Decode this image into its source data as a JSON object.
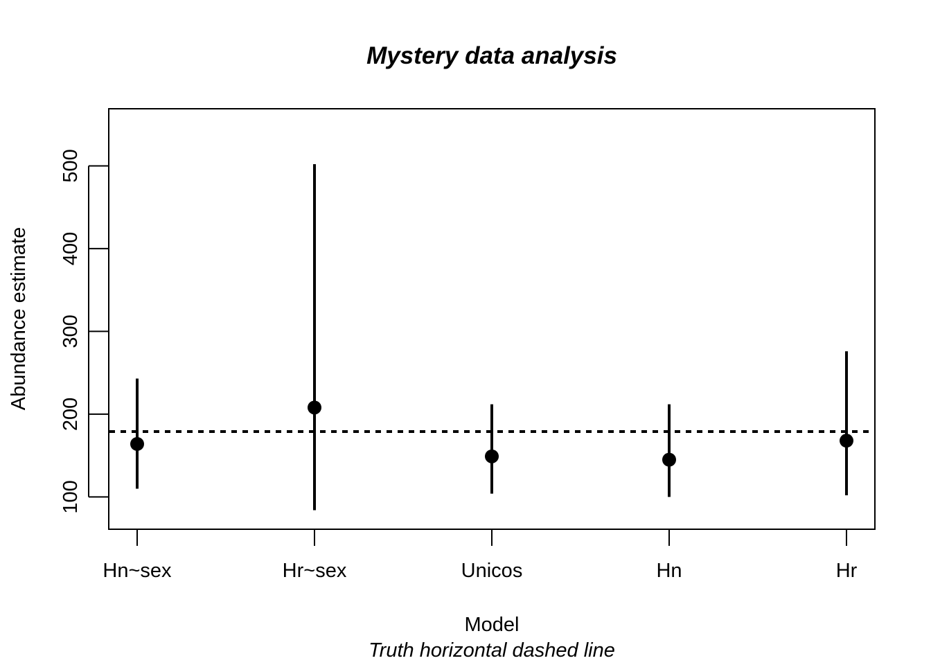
{
  "chart_data": {
    "type": "scatter",
    "title": "Mystery data analysis",
    "xlabel": "Model",
    "ylabel": "Abundance estimate",
    "subtitle": "Truth horizontal dashed line",
    "categories": [
      "Hn~sex",
      "Hr~sex",
      "Unicos",
      "Hn",
      "Hr"
    ],
    "estimates": [
      164,
      208,
      149,
      145,
      168
    ],
    "lower": [
      110,
      84,
      104,
      100,
      102
    ],
    "upper": [
      243,
      502,
      212,
      212,
      276
    ],
    "truth": 179,
    "ylim": [
      61,
      569
    ],
    "yticks": [
      100,
      200,
      300,
      400,
      500
    ],
    "grid": false,
    "legend": "none"
  }
}
